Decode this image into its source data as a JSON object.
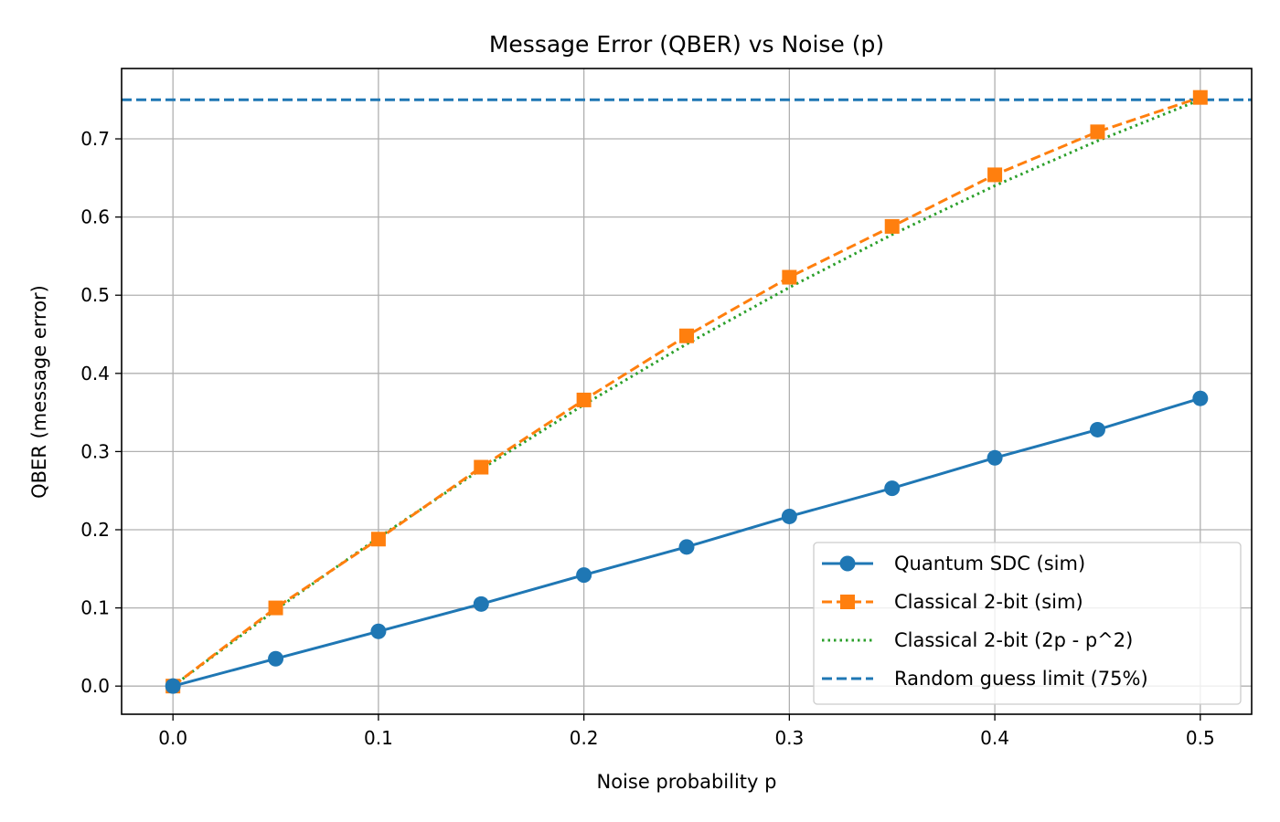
{
  "chart_data": {
    "type": "line",
    "title": "Message Error (QBER) vs Noise (p)",
    "xlabel": "Noise probability p",
    "ylabel": "QBER (message error)",
    "xlim": [
      -0.025,
      0.525
    ],
    "ylim": [
      -0.036,
      0.79
    ],
    "x_ticks": [
      "0.0",
      "0.1",
      "0.2",
      "0.3",
      "0.4",
      "0.5"
    ],
    "y_ticks": [
      "0.0",
      "0.1",
      "0.2",
      "0.3",
      "0.4",
      "0.5",
      "0.6",
      "0.7"
    ],
    "grid": true,
    "legend_position": "lower-right",
    "x": [
      0.0,
      0.05,
      0.1,
      0.15,
      0.2,
      0.25,
      0.3,
      0.35,
      0.4,
      0.45,
      0.5
    ],
    "series": [
      {
        "name": "Quantum SDC (sim)",
        "color": "#1f77b4",
        "line_style": "solid",
        "marker": "circle",
        "values": [
          0.0,
          0.035,
          0.07,
          0.105,
          0.142,
          0.178,
          0.217,
          0.253,
          0.292,
          0.328,
          0.368
        ]
      },
      {
        "name": "Classical 2-bit (sim)",
        "color": "#ff7f0e",
        "line_style": "dashed",
        "marker": "square",
        "values": [
          0.0,
          0.1,
          0.188,
          0.28,
          0.366,
          0.448,
          0.523,
          0.588,
          0.654,
          0.709,
          0.753
        ]
      },
      {
        "name": "Classical 2-bit (2p - p^2)",
        "color": "#2ca02c",
        "line_style": "dotted",
        "marker": "none",
        "values": [
          0.0,
          0.0975,
          0.19,
          0.2775,
          0.36,
          0.4375,
          0.51,
          0.5775,
          0.64,
          0.6975,
          0.75
        ]
      }
    ],
    "reference_lines": [
      {
        "name": "Random guess limit (75%)",
        "color": "#1f77b4",
        "line_style": "dashed",
        "y": 0.75
      }
    ]
  }
}
